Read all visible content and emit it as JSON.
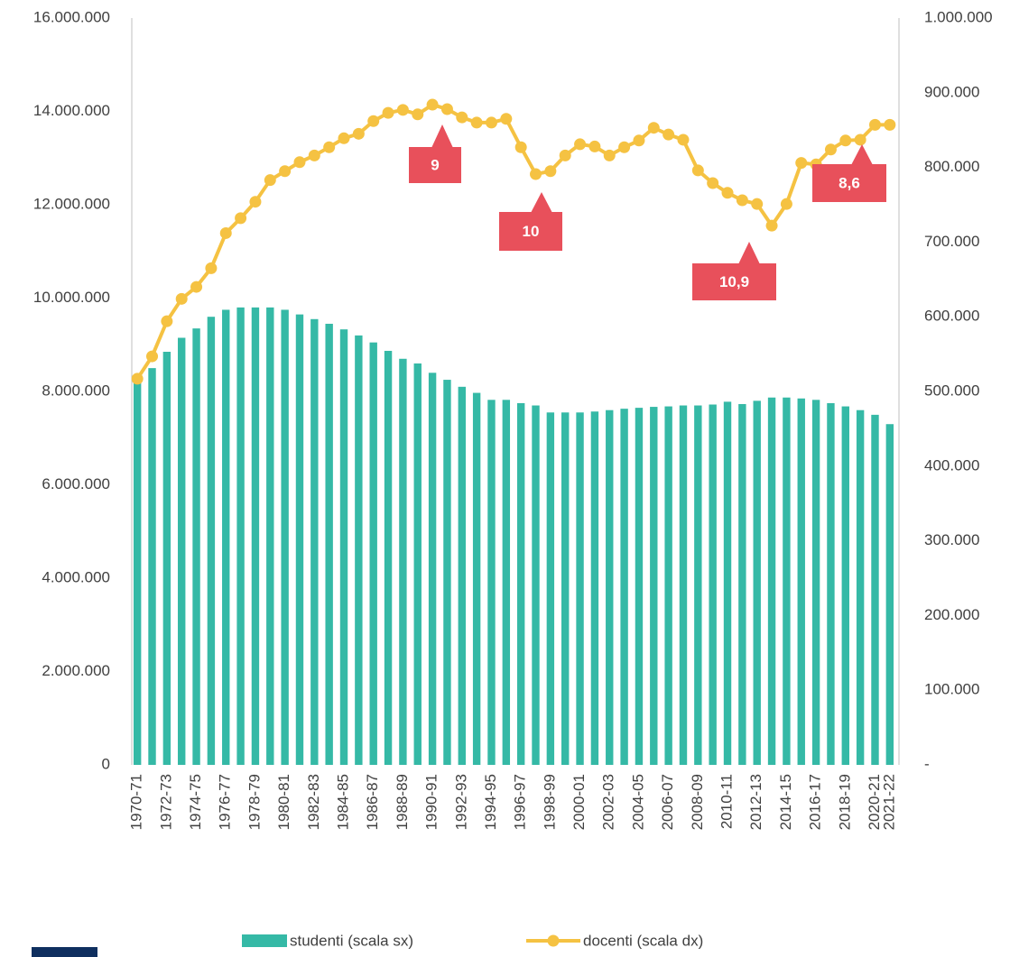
{
  "chart_data": {
    "type": "bar-line",
    "categories": [
      "1970-71",
      null,
      "1972-73",
      null,
      "1974-75",
      null,
      "1976-77",
      null,
      "1978-79",
      null,
      "1980-81",
      null,
      "1982-83",
      null,
      "1984-85",
      null,
      "1986-87",
      null,
      "1988-89",
      null,
      "1990-91",
      null,
      "1992-93",
      null,
      "1994-95",
      null,
      "1996-97",
      null,
      "1998-99",
      null,
      "2000-01",
      null,
      "2002-03",
      null,
      "2004-05",
      null,
      "2006-07",
      null,
      "2008-09",
      null,
      "2010-11",
      null,
      "2012-13",
      null,
      "2014-15",
      null,
      "2016-17",
      null,
      "2018-19",
      null,
      "2020-21",
      "2021-22"
    ],
    "series": [
      {
        "name": "studenti (scala sx)",
        "type": "bar",
        "color": "#35b9a6",
        "values": [
          8200000,
          8500000,
          8850000,
          9150000,
          9350000,
          9600000,
          9750000,
          9800000,
          9800000,
          9800000,
          9750000,
          9650000,
          9550000,
          9450000,
          9330000,
          9200000,
          9050000,
          8870000,
          8700000,
          8600000,
          8400000,
          8250000,
          8100000,
          7970000,
          7820000,
          7820000,
          7750000,
          7700000,
          7550000,
          7550000,
          7550000,
          7570000,
          7600000,
          7630000,
          7650000,
          7670000,
          7680000,
          7700000,
          7700000,
          7720000,
          7780000,
          7730000,
          7800000,
          7870000,
          7870000,
          7850000,
          7820000,
          7750000,
          7680000,
          7600000,
          7500000,
          7300000
        ]
      },
      {
        "name": "docenti (scala dx)",
        "type": "line",
        "axis": "y2",
        "color": "#f5c242",
        "values": [
          517000,
          547000,
          594000,
          624000,
          640000,
          665000,
          712000,
          732000,
          754000,
          783000,
          795000,
          807000,
          816000,
          827000,
          839000,
          845000,
          862000,
          873000,
          877000,
          871000,
          884000,
          878000,
          867000,
          860000,
          860000,
          865000,
          827000,
          791000,
          795000,
          816000,
          831000,
          828000,
          816000,
          827000,
          836000,
          853000,
          844000,
          837000,
          796000,
          779000,
          766000,
          756000,
          751000,
          722000,
          751000,
          806000,
          804000,
          824000,
          836000,
          837000,
          857000,
          857000
        ]
      }
    ],
    "annotations": [
      "9",
      "10",
      "10,9",
      "8,6"
    ],
    "ylim": [
      0,
      16000000
    ],
    "yticks": [
      0,
      {
        "value": 2000000,
        "label": "2.000.000"
      },
      {
        "value": 4000000,
        "label": "4.000.000"
      },
      {
        "value": 6000000,
        "label": "6.000.000"
      },
      {
        "value": 8000000,
        "label": "8.000.000"
      },
      {
        "value": 10000000,
        "label": "10.000.000"
      },
      {
        "value": 12000000,
        "label": "12.000.000"
      },
      {
        "value": 14000000,
        "label": "14.000.000"
      },
      {
        "value": 16000000,
        "label": "16.000.000"
      }
    ],
    "y2lim": [
      0,
      1000000
    ],
    "y2ticks": [
      {
        "value": 0,
        "label": "-"
      },
      {
        "value": 100000,
        "label": "100.000"
      },
      {
        "value": 200000,
        "label": "200.000"
      },
      {
        "value": 300000,
        "label": "300.000"
      },
      {
        "value": 400000,
        "label": "400.000"
      },
      {
        "value": 500000,
        "label": "500.000"
      },
      {
        "value": 600000,
        "label": "600.000"
      },
      {
        "value": 700000,
        "label": "700.000"
      },
      {
        "value": 800000,
        "label": "800.000"
      },
      {
        "value": 900000,
        "label": "900.000"
      },
      {
        "value": 1000000,
        "label": "1.000.000"
      }
    ],
    "grid": false
  }
}
